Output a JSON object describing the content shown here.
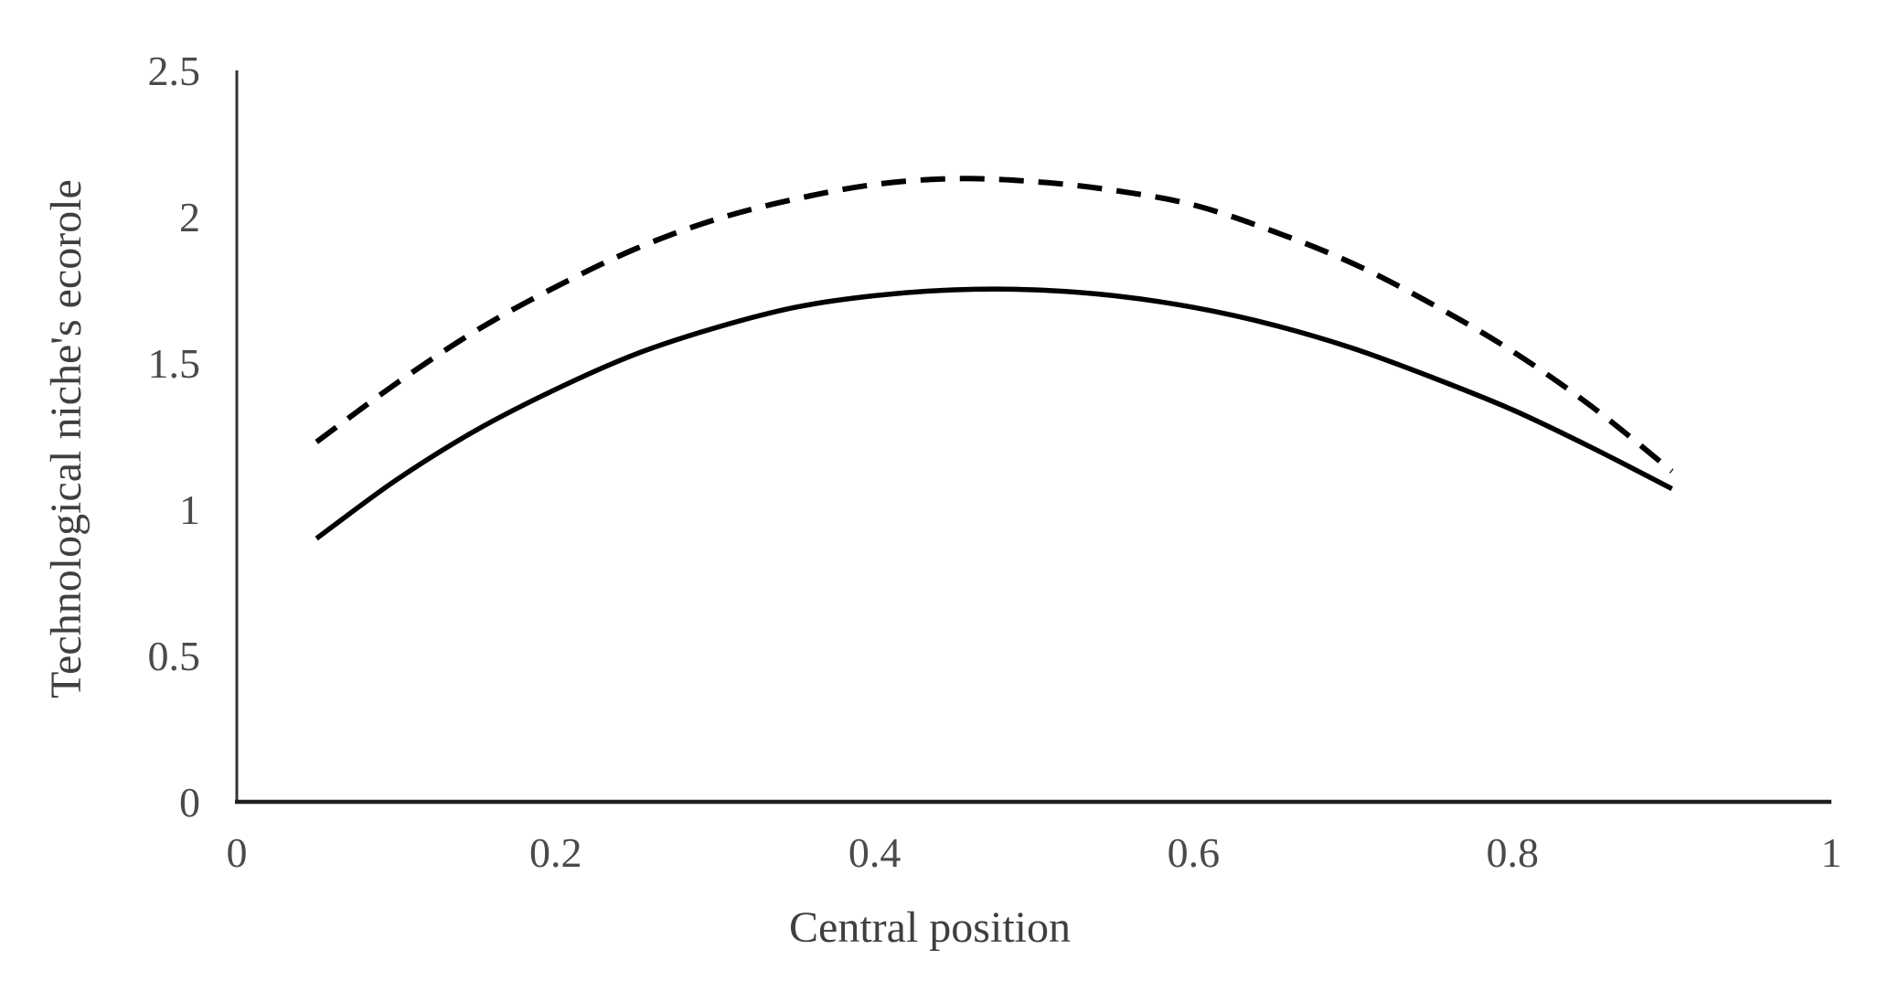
{
  "figure": {
    "background": "#ffffff"
  },
  "colors": {
    "x_axis_line": "#1f1f1f",
    "y_axis_line": "#333333",
    "tick_label": "#4a4a4a",
    "axis_title": "#3f3f3f",
    "curve": "#000000"
  },
  "chart_data": {
    "type": "line",
    "title": "",
    "xlabel": "Central position",
    "ylabel": "Technological niche's ecorole",
    "xlim": [
      0,
      1
    ],
    "ylim": [
      0,
      2.5
    ],
    "grid": false,
    "legend": "none",
    "x_ticks": {
      "values": [
        0,
        0.2,
        0.4,
        0.6,
        0.8,
        1
      ],
      "labels": [
        "0",
        "0.2",
        "0.4",
        "0.6",
        "0.8",
        "1"
      ]
    },
    "y_ticks": {
      "values": [
        0,
        0.5,
        1,
        1.5,
        2,
        2.5
      ],
      "labels": [
        "0",
        "0.5",
        "1",
        "1.5",
        "2",
        "2.5"
      ]
    },
    "series": [
      {
        "name": "dashed-series",
        "style": "dashed",
        "color": "#000000",
        "points": [
          [
            0.05,
            1.23
          ],
          [
            0.1,
            1.43
          ],
          [
            0.15,
            1.61
          ],
          [
            0.2,
            1.76
          ],
          [
            0.25,
            1.89
          ],
          [
            0.3,
            1.99
          ],
          [
            0.35,
            2.06
          ],
          [
            0.4,
            2.11
          ],
          [
            0.45,
            2.13
          ],
          [
            0.5,
            2.12
          ],
          [
            0.55,
            2.09
          ],
          [
            0.6,
            2.04
          ],
          [
            0.65,
            1.95
          ],
          [
            0.7,
            1.84
          ],
          [
            0.75,
            1.7
          ],
          [
            0.8,
            1.54
          ],
          [
            0.85,
            1.35
          ],
          [
            0.9,
            1.13
          ]
        ]
      },
      {
        "name": "solid-series",
        "style": "solid",
        "color": "#000000",
        "points": [
          [
            0.05,
            0.9
          ],
          [
            0.1,
            1.1
          ],
          [
            0.15,
            1.27
          ],
          [
            0.2,
            1.41
          ],
          [
            0.25,
            1.53
          ],
          [
            0.3,
            1.62
          ],
          [
            0.35,
            1.69
          ],
          [
            0.4,
            1.73
          ],
          [
            0.45,
            1.75
          ],
          [
            0.5,
            1.75
          ],
          [
            0.55,
            1.73
          ],
          [
            0.6,
            1.69
          ],
          [
            0.65,
            1.63
          ],
          [
            0.7,
            1.55
          ],
          [
            0.75,
            1.45
          ],
          [
            0.8,
            1.34
          ],
          [
            0.85,
            1.21
          ],
          [
            0.9,
            1.07
          ]
        ]
      }
    ]
  }
}
